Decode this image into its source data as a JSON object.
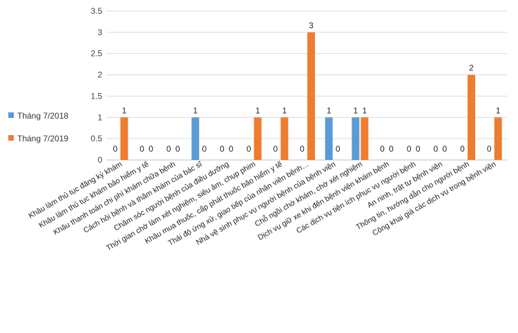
{
  "chart_data": {
    "type": "bar",
    "categories": [
      "Khâu làm thủ tục đăng ký khám",
      "Khâu làm thủ tục khám bảo hiểm y tế",
      "Khâu thanh toán chi phí khám chữa bệnh",
      "Cách hỏi bệnh và thăm khám của bác sĩ",
      "Chăm sóc người bệnh của điều dưỡng",
      "Thời gian chờ làm xét nghiệm, siêu âm, chụp phim",
      "Khâu mua thuốc, cấp phát thuốc bảo hiểm y tế",
      "Thái độ ứng xử, giao tiếp của nhân viên bệnh…",
      "Nhà vệ sinh phục vụ người bệnh của bệnh viện",
      "Chỗ ngồi chờ khám, chờ xét nghiệm",
      "Dịch vụ giữ xe khi đến bệnh viện khám bệnh",
      "Các dịch vụ tiện ích phục vụ người bệnh",
      "An ninh, trật tự bệnh viện",
      "Thông tin, hướng dẫn cho người bệnh",
      "Công khai giá các dịch vụ trong bệnh viện"
    ],
    "series": [
      {
        "name": "Tháng 7/2018",
        "color": "#5B9BD5",
        "values": [
          0,
          0,
          0,
          1,
          0,
          0,
          0,
          0,
          1,
          1,
          0,
          0,
          0,
          0,
          0
        ]
      },
      {
        "name": "Tháng 7/2019",
        "color": "#ED7D31",
        "values": [
          1,
          0,
          0,
          0,
          0,
          1,
          1,
          3,
          0,
          1,
          0,
          0,
          0,
          2,
          1
        ]
      }
    ],
    "y_ticks": [
      "0",
      "0.5",
      "1",
      "1.5",
      "2",
      "2.5",
      "3",
      "3.5"
    ],
    "ylim": [
      0,
      3.5
    ],
    "grid": true,
    "legend_position": "left",
    "title": "",
    "xlabel": "",
    "ylabel": ""
  }
}
